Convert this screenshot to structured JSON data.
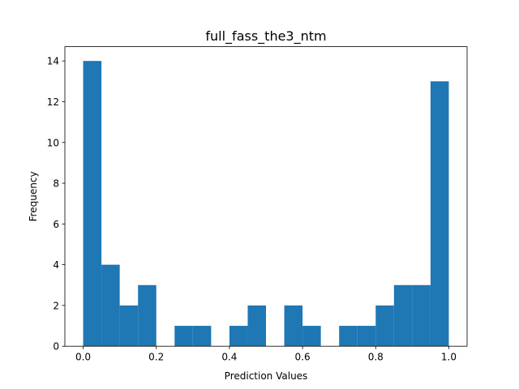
{
  "chart_data": {
    "type": "bar",
    "title": "full_fass_the3_ntm",
    "xlabel": "Prediction Values",
    "ylabel": "Frequency",
    "xlim": [
      -0.05,
      1.05
    ],
    "ylim": [
      0,
      14.7
    ],
    "bin_edges": [
      0.0,
      0.05,
      0.1,
      0.15,
      0.2,
      0.25,
      0.3,
      0.35,
      0.4,
      0.45,
      0.5,
      0.55,
      0.6,
      0.65,
      0.7,
      0.75,
      0.8,
      0.85,
      0.9,
      0.95,
      1.0
    ],
    "values": [
      14,
      4,
      2,
      3,
      0,
      1,
      1,
      0,
      1,
      2,
      0,
      2,
      1,
      0,
      1,
      1,
      2,
      3,
      3,
      13
    ],
    "xticks": [
      0.0,
      0.2,
      0.4,
      0.6,
      0.8,
      1.0
    ],
    "xtick_labels": [
      "0.0",
      "0.2",
      "0.4",
      "0.6",
      "0.8",
      "1.0"
    ],
    "yticks": [
      0,
      2,
      4,
      6,
      8,
      10,
      12,
      14
    ],
    "ytick_labels": [
      "0",
      "2",
      "4",
      "6",
      "8",
      "10",
      "12",
      "14"
    ],
    "bar_color": "#1f77b4",
    "grid": false,
    "legend": "none"
  }
}
